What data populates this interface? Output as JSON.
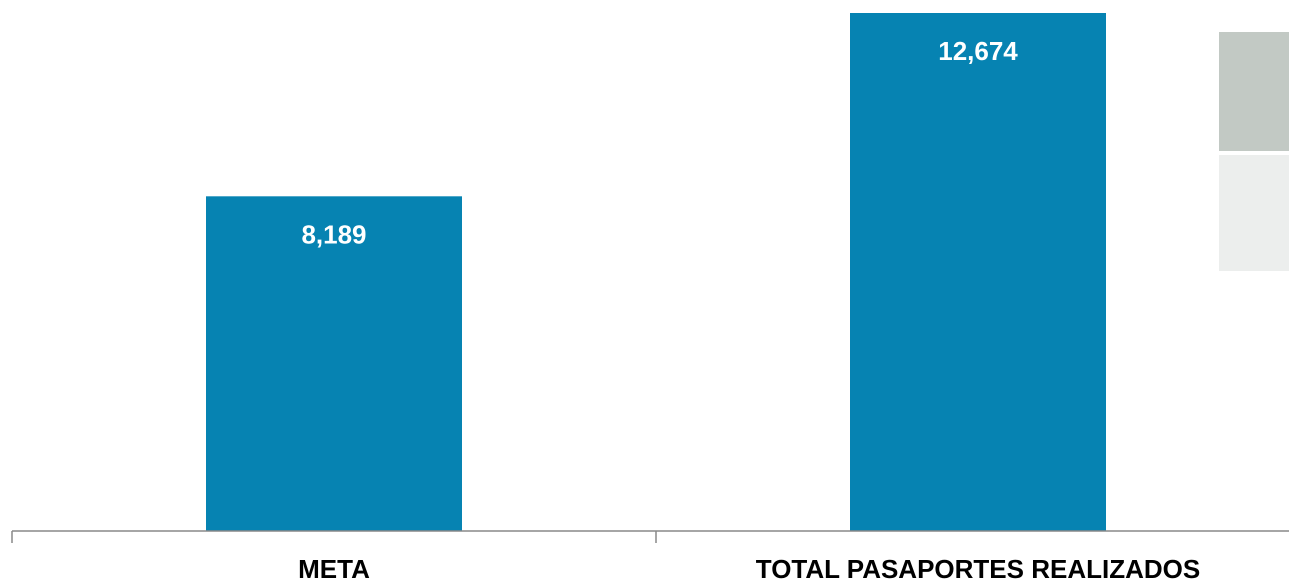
{
  "chart_data": {
    "type": "bar",
    "categories": [
      "META",
      "TOTAL PASAPORTES REALIZADOS"
    ],
    "values": [
      8189,
      12674
    ],
    "value_labels": [
      "8,189",
      "12,674"
    ],
    "title": "",
    "xlabel": "",
    "ylabel": "",
    "ylim": [
      0,
      12674
    ],
    "grid": false,
    "legend": "right",
    "colors": {
      "bar": "#0683b2",
      "axis": "#888888",
      "legend_swatch_1": "#c2c9c4",
      "legend_swatch_2": "#eceeed"
    }
  }
}
